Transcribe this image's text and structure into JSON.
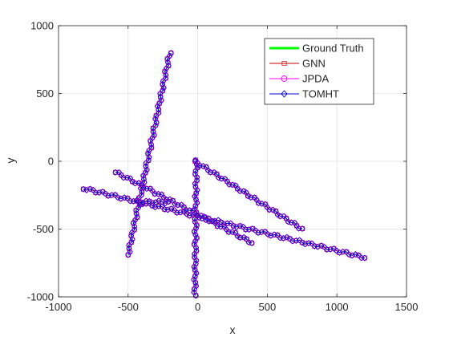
{
  "chart_data": {
    "type": "line",
    "title": "",
    "xlabel": "x",
    "ylabel": "y",
    "xlim": [
      -1000,
      1500
    ],
    "ylim": [
      -1000,
      1000
    ],
    "xticks": [
      "-1000",
      "-500",
      "0",
      "500",
      "1000",
      "1500"
    ],
    "yticks": [
      "-1000",
      "-500",
      "0",
      "500",
      "1000"
    ],
    "xtick_values": [
      -1000,
      -500,
      0,
      500,
      1000,
      1500
    ],
    "ytick_values": [
      -1000,
      -500,
      0,
      500,
      1000
    ],
    "grid": true,
    "legend_position": "top-right",
    "tracks": [
      {
        "x": [
          -500,
          -200
        ],
        "y": [
          -690,
          800
        ]
      },
      {
        "x": [
          -20,
          -10
        ],
        "y": [
          -990,
          0
        ]
      },
      {
        "x": [
          -20,
          750
        ],
        "y": [
          0,
          -500
        ]
      },
      {
        "x": [
          -820,
          1200
        ],
        "y": [
          -200,
          -710
        ]
      },
      {
        "x": [
          -590,
          390
        ],
        "y": [
          -80,
          -600
        ]
      },
      {
        "x": [
          -440,
          -210
        ],
        "y": [
          -300,
          -300
        ]
      }
    ],
    "series": [
      {
        "name": "Ground Truth",
        "color": "#00ff00",
        "marker": "none"
      },
      {
        "name": "GNN",
        "color": "#cc0000",
        "marker": "square"
      },
      {
        "name": "JPDA",
        "color": "#ff00ff",
        "marker": "circle"
      },
      {
        "name": "TOMHT",
        "color": "#0000cc",
        "marker": "diamond"
      }
    ]
  }
}
